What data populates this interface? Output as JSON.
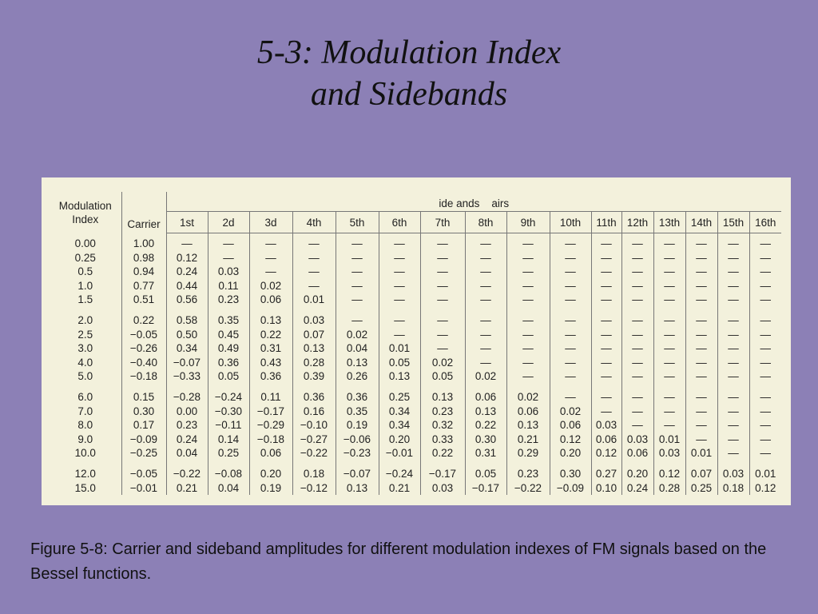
{
  "title": {
    "line1": "5-3: Modulation Index",
    "line2": "and Sidebands"
  },
  "table": {
    "index_header_line1": "Modulation",
    "index_header_line2": "Index",
    "carrier_header": "Carrier",
    "group_header": "ide ands    airs",
    "columns": [
      "1st",
      "2d",
      "3d",
      "4th",
      "5th",
      "6th",
      "7th",
      "8th",
      "9th",
      "10th",
      "11th",
      "12th",
      "13th",
      "14th",
      "15th",
      "16th"
    ],
    "rows": [
      {
        "index": "0.00",
        "carrier": "1.00",
        "values": [
          "—",
          "—",
          "—",
          "—",
          "—",
          "—",
          "—",
          "—",
          "—",
          "—",
          "—",
          "—",
          "—",
          "—",
          "—",
          "—"
        ],
        "gap": false
      },
      {
        "index": "0.25",
        "carrier": "0.98",
        "values": [
          "0.12",
          "—",
          "—",
          "—",
          "—",
          "—",
          "—",
          "—",
          "—",
          "—",
          "—",
          "—",
          "—",
          "—",
          "—",
          "—"
        ],
        "gap": false
      },
      {
        "index": "0.5",
        "carrier": "0.94",
        "values": [
          "0.24",
          "0.03",
          "—",
          "—",
          "—",
          "—",
          "—",
          "—",
          "—",
          "—",
          "—",
          "—",
          "—",
          "—",
          "—",
          "—"
        ],
        "gap": false
      },
      {
        "index": "1.0",
        "carrier": "0.77",
        "values": [
          "0.44",
          "0.11",
          "0.02",
          "—",
          "—",
          "—",
          "—",
          "—",
          "—",
          "—",
          "—",
          "—",
          "—",
          "—",
          "—",
          "—"
        ],
        "gap": false
      },
      {
        "index": "1.5",
        "carrier": "0.51",
        "values": [
          "0.56",
          "0.23",
          "0.06",
          "0.01",
          "—",
          "—",
          "—",
          "—",
          "—",
          "—",
          "—",
          "—",
          "—",
          "—",
          "—",
          "—"
        ],
        "gap": false
      },
      {
        "index": "2.0",
        "carrier": "0.22",
        "values": [
          "0.58",
          "0.35",
          "0.13",
          "0.03",
          "—",
          "—",
          "—",
          "—",
          "—",
          "—",
          "—",
          "—",
          "—",
          "—",
          "—",
          "—"
        ],
        "gap": true
      },
      {
        "index": "2.5",
        "carrier": "−0.05",
        "values": [
          "0.50",
          "0.45",
          "0.22",
          "0.07",
          "0.02",
          "—",
          "—",
          "—",
          "—",
          "—",
          "—",
          "—",
          "—",
          "—",
          "—",
          "—"
        ],
        "gap": false
      },
      {
        "index": "3.0",
        "carrier": "−0.26",
        "values": [
          "0.34",
          "0.49",
          "0.31",
          "0.13",
          "0.04",
          "0.01",
          "—",
          "—",
          "—",
          "—",
          "—",
          "—",
          "—",
          "—",
          "—",
          "—"
        ],
        "gap": false
      },
      {
        "index": "4.0",
        "carrier": "−0.40",
        "values": [
          "−0.07",
          "0.36",
          "0.43",
          "0.28",
          "0.13",
          "0.05",
          "0.02",
          "—",
          "—",
          "—",
          "—",
          "—",
          "—",
          "—",
          "—",
          "—"
        ],
        "gap": false
      },
      {
        "index": "5.0",
        "carrier": "−0.18",
        "values": [
          "−0.33",
          "0.05",
          "0.36",
          "0.39",
          "0.26",
          "0.13",
          "0.05",
          "0.02",
          "—",
          "—",
          "—",
          "—",
          "—",
          "—",
          "—",
          "—"
        ],
        "gap": false
      },
      {
        "index": "6.0",
        "carrier": "0.15",
        "values": [
          "−0.28",
          "−0.24",
          "0.11",
          "0.36",
          "0.36",
          "0.25",
          "0.13",
          "0.06",
          "0.02",
          "—",
          "—",
          "—",
          "—",
          "—",
          "—",
          "—"
        ],
        "gap": true
      },
      {
        "index": "7.0",
        "carrier": "0.30",
        "values": [
          "0.00",
          "−0.30",
          "−0.17",
          "0.16",
          "0.35",
          "0.34",
          "0.23",
          "0.13",
          "0.06",
          "0.02",
          "—",
          "—",
          "—",
          "—",
          "—",
          "—"
        ],
        "gap": false
      },
      {
        "index": "8.0",
        "carrier": "0.17",
        "values": [
          "0.23",
          "−0.11",
          "−0.29",
          "−0.10",
          "0.19",
          "0.34",
          "0.32",
          "0.22",
          "0.13",
          "0.06",
          "0.03",
          "—",
          "—",
          "—",
          "—",
          "—"
        ],
        "gap": false
      },
      {
        "index": "9.0",
        "carrier": "−0.09",
        "values": [
          "0.24",
          "0.14",
          "−0.18",
          "−0.27",
          "−0.06",
          "0.20",
          "0.33",
          "0.30",
          "0.21",
          "0.12",
          "0.06",
          "0.03",
          "0.01",
          "—",
          "—",
          "—"
        ],
        "gap": false
      },
      {
        "index": "10.0",
        "carrier": "−0.25",
        "values": [
          "0.04",
          "0.25",
          "0.06",
          "−0.22",
          "−0.23",
          "−0.01",
          "0.22",
          "0.31",
          "0.29",
          "0.20",
          "0.12",
          "0.06",
          "0.03",
          "0.01",
          "—",
          "—"
        ],
        "gap": false
      },
      {
        "index": "12.0",
        "carrier": "−0.05",
        "values": [
          "−0.22",
          "−0.08",
          "0.20",
          "0.18",
          "−0.07",
          "−0.24",
          "−0.17",
          "0.05",
          "0.23",
          "0.30",
          "0.27",
          "0.20",
          "0.12",
          "0.07",
          "0.03",
          "0.01"
        ],
        "gap": true
      },
      {
        "index": "15.0",
        "carrier": "−0.01",
        "values": [
          "0.21",
          "0.04",
          "0.19",
          "−0.12",
          "0.13",
          "0.21",
          "0.03",
          "−0.17",
          "−0.22",
          "−0.09",
          "0.10",
          "0.24",
          "0.28",
          "0.25",
          "0.18",
          "0.12"
        ],
        "gap": false
      }
    ]
  },
  "caption": "Figure 5-8: Carrier and sideband amplitudes for different modulation indexes of FM signals based on the Bessel functions."
}
